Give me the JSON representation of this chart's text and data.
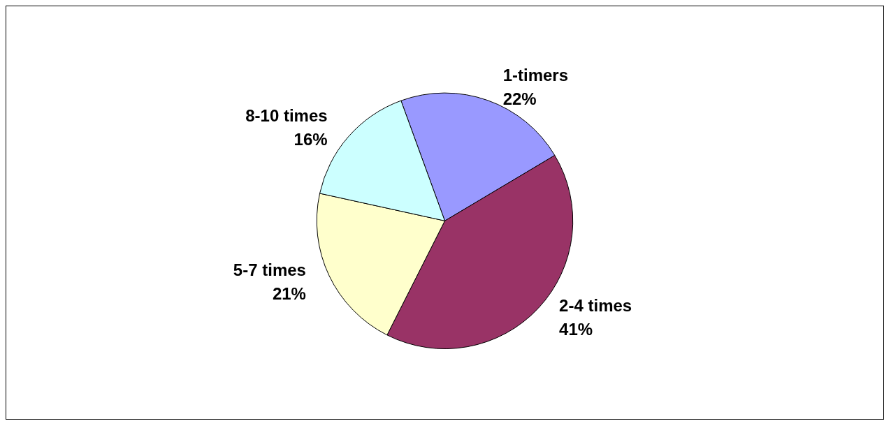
{
  "chart_data": {
    "type": "pie",
    "categories": [
      "1-timers",
      "2-4 times",
      "5-7 times",
      "8-10 times"
    ],
    "values": [
      22,
      41,
      21,
      16
    ],
    "value_labels": [
      "22%",
      "41%",
      "21%",
      "16%"
    ],
    "colors": [
      "#9999ff",
      "#993366",
      "#ffffcc",
      "#ccffff"
    ],
    "legend": false
  }
}
